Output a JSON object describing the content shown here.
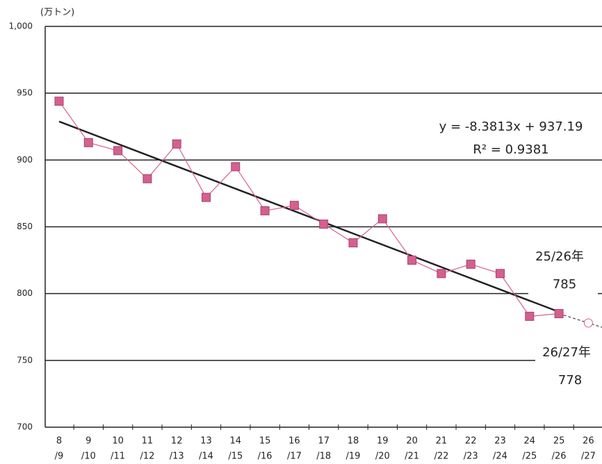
{
  "chart_data": {
    "type": "line",
    "y_unit": "(万トン)",
    "categories": [
      [
        "8",
        "/9"
      ],
      [
        "9",
        "/10"
      ],
      [
        "10",
        "/11"
      ],
      [
        "11",
        "/12"
      ],
      [
        "12",
        "/13"
      ],
      [
        "13",
        "/14"
      ],
      [
        "14",
        "/15"
      ],
      [
        "15",
        "/16"
      ],
      [
        "16",
        "/17"
      ],
      [
        "17",
        "/18"
      ],
      [
        "18",
        "/19"
      ],
      [
        "19",
        "/20"
      ],
      [
        "20",
        "/21"
      ],
      [
        "21",
        "/22"
      ],
      [
        "22",
        "/23"
      ],
      [
        "23",
        "/24"
      ],
      [
        "24",
        "/25"
      ],
      [
        "25",
        "/26"
      ],
      [
        "26",
        "/27"
      ]
    ],
    "values": [
      944,
      913,
      907,
      886,
      912,
      872,
      895,
      862,
      866,
      852,
      838,
      856,
      825,
      815,
      822,
      815,
      783,
      785,
      null
    ],
    "color": "#d4608e",
    "forecast": 778,
    "trendline": {
      "start": 928.8,
      "end": 786.3,
      "color": "#222222"
    },
    "ylim": [
      700,
      1000
    ],
    "yticks": [
      700,
      750,
      800,
      850,
      900,
      950,
      {
        "value": 1000,
        "label": "1,000"
      }
    ],
    "grid": true,
    "annotations": [
      "y = -8.3813x + 937.19",
      "R² = 0.9381",
      "25/26年",
      "785",
      "26/27年",
      "778"
    ]
  }
}
